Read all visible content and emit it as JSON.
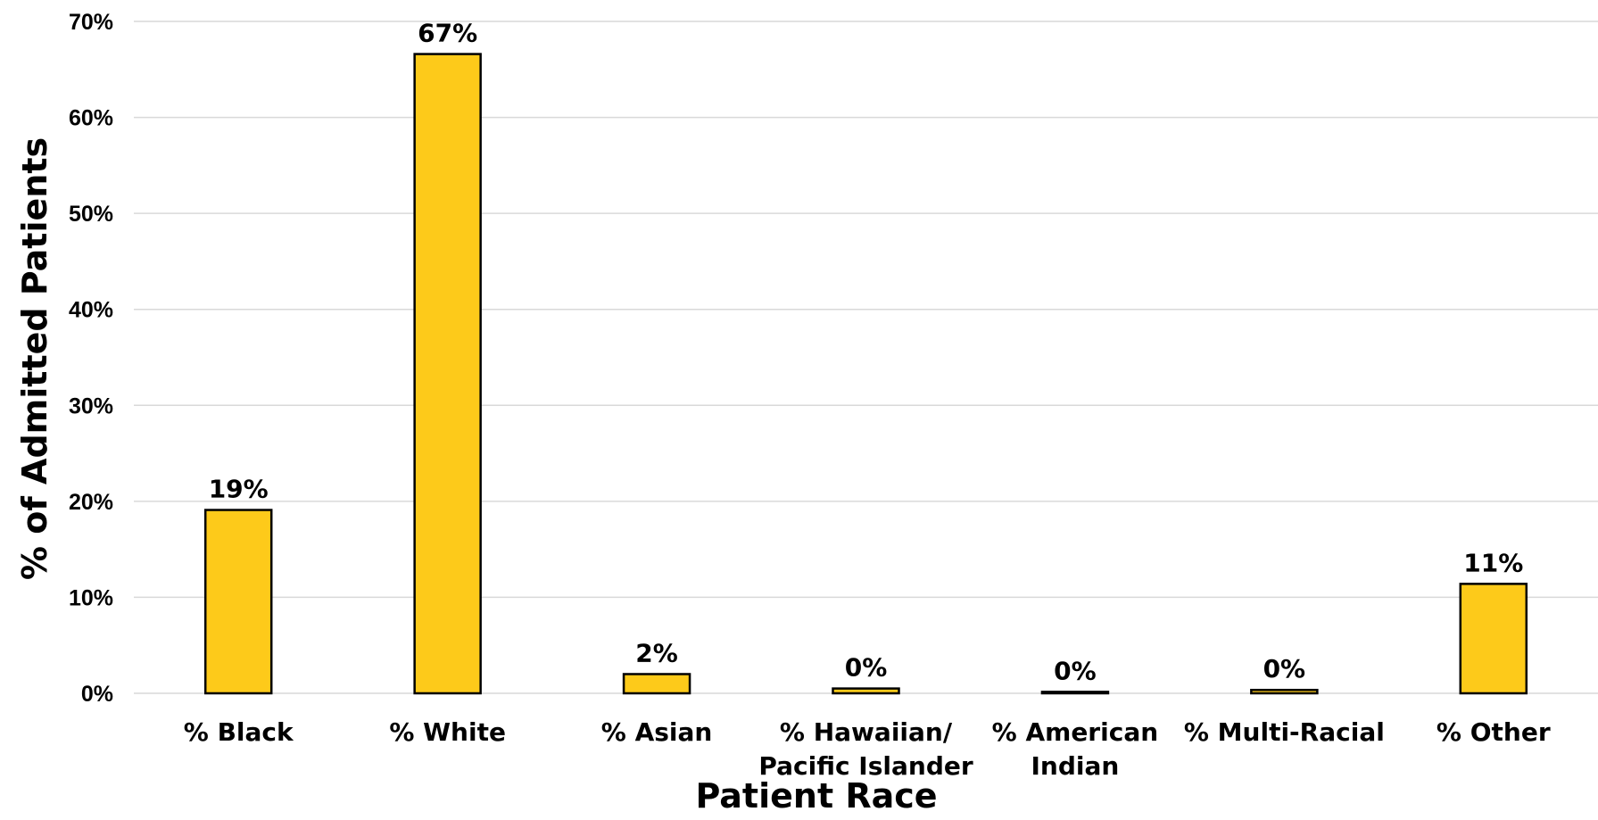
{
  "chart_data": {
    "type": "bar",
    "categories": [
      [
        "% Black"
      ],
      [
        "% White"
      ],
      [
        "% Asian"
      ],
      [
        "% Hawaiian/",
        "Pacific Islander"
      ],
      [
        "% American",
        "Indian"
      ],
      [
        "% Multi-Racial"
      ],
      [
        "% Other"
      ]
    ],
    "values": [
      19.1,
      66.6,
      2.0,
      0.5,
      0.15,
      0.35,
      11.4
    ],
    "data_labels": [
      "19%",
      "67%",
      "2%",
      "0%",
      "0%",
      "0%",
      "11%"
    ],
    "xlabel": "Patient Race",
    "ylabel": "% of Admitted Patients",
    "ylim": [
      0,
      70
    ],
    "yticks": [
      0,
      10,
      20,
      30,
      40,
      50,
      60,
      70
    ],
    "ytick_labels": [
      "0%",
      "10%",
      "20%",
      "30%",
      "40%",
      "50%",
      "60%",
      "70%"
    ],
    "grid": true,
    "bar_color": "#FDCA1A",
    "bar_outline": "#000000"
  }
}
